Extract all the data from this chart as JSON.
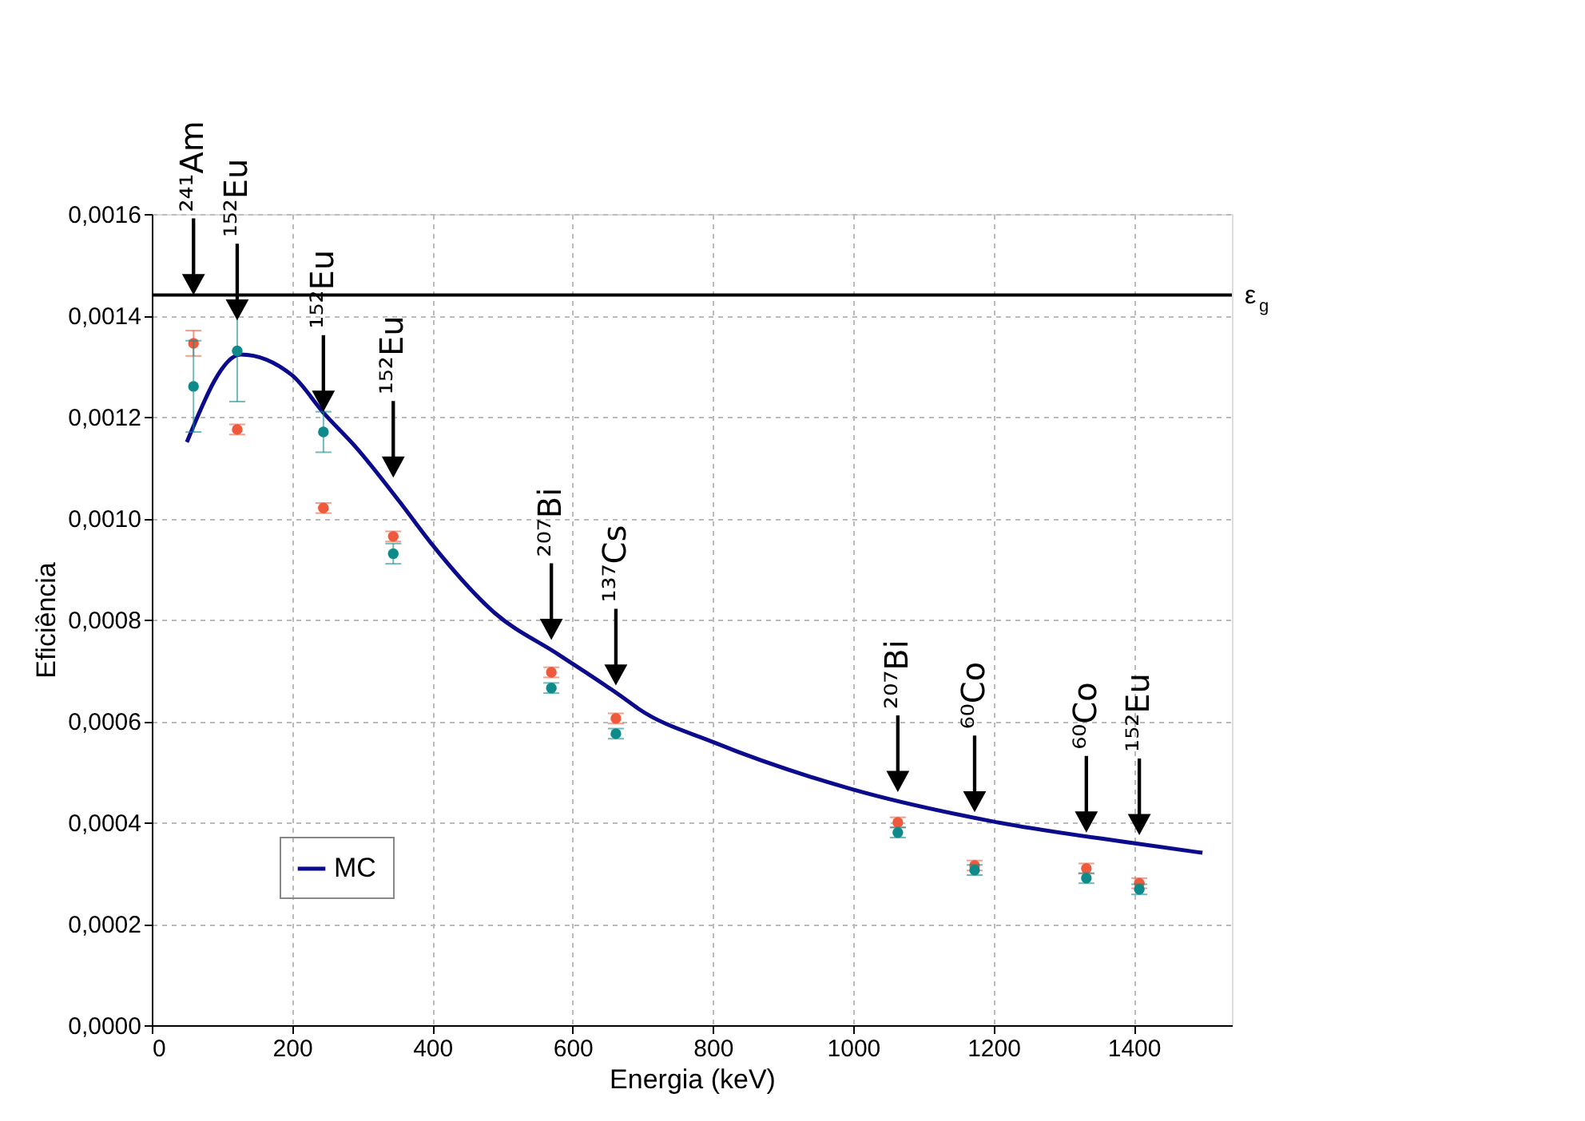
{
  "chart_data": {
    "type": "scatter",
    "xlabel": "Energia (keV)",
    "ylabel": "Eficiência",
    "xlim": [
      0,
      1540
    ],
    "xticks": [
      0,
      200,
      400,
      600,
      800,
      1000,
      1200,
      1400
    ],
    "ylim": [
      0,
      0.0016
    ],
    "yticks": [
      {
        "value": 0,
        "label": "0,0000"
      },
      {
        "value": 0.0002,
        "label": "0,0002"
      },
      {
        "value": 0.0004,
        "label": "0,0004"
      },
      {
        "value": 0.0006,
        "label": "0,0006"
      },
      {
        "value": 0.0008,
        "label": "0,0008"
      },
      {
        "value": 0.001,
        "label": "0,0010"
      },
      {
        "value": 0.0012,
        "label": "0,0012"
      },
      {
        "value": 0.0014,
        "label": "0,0014"
      },
      {
        "value": 0.0016,
        "label": "0,0016"
      }
    ],
    "grid": true,
    "legend": "bottom left",
    "marker": "circle",
    "series": [
      {
        "color": "#0f8a8a",
        "x": [
          59.5,
          121.8,
          244.7,
          344.3,
          569.7,
          661.7,
          1063.7,
          1173.2,
          1332.5,
          1408
        ],
        "values": [
          0.00126,
          0.00133,
          0.00117,
          0.00093,
          0.000665,
          0.000575,
          0.00038,
          0.000306,
          0.00029,
          0.000268
        ],
        "errors": [
          9e-05,
          0.0001,
          4e-05,
          2e-05,
          1e-05,
          1e-05,
          1e-05,
          1e-05,
          1e-05,
          1e-05
        ]
      },
      {
        "color": "#f05a3c",
        "x": [
          59.5,
          121.8,
          244.7,
          344.3,
          569.7,
          661.7,
          1063.7,
          1173.2,
          1332.5,
          1408
        ],
        "values": [
          0.001345,
          0.001175,
          0.00102,
          0.000964,
          0.000696,
          0.000605,
          0.0004,
          0.000315,
          0.000309,
          0.00028
        ],
        "errors": [
          2.5e-05,
          1e-05,
          1e-05,
          1e-05,
          1e-05,
          1e-05,
          1e-05,
          1e-05,
          1e-05,
          1e-05
        ]
      },
      {
        "type": "line",
        "name": "MC",
        "color": "#0b0b8b",
        "marker": "none",
        "line_style": "solid",
        "x": [
          50,
          127,
          200,
          246,
          291,
          353,
          398,
          489,
          580,
          672,
          694,
          801,
          997,
          1195,
          1400,
          1498
        ],
        "values": [
          0.00115,
          0.001323,
          0.001282,
          0.001206,
          0.00114,
          0.001033,
          0.000951,
          0.000813,
          0.000731,
          0.000646,
          0.000624,
          0.000558,
          0.000466,
          0.000403,
          0.000359,
          0.00034
        ]
      }
    ],
    "ref_lines": [
      {
        "axis": "y",
        "value": 0.00144,
        "label": "ε$_{g}$",
        "color": "#000000"
      }
    ],
    "annotations": [
      {
        "text": "²⁴¹Am",
        "x": 59.5,
        "y": 0.00144
      },
      {
        "text": "¹⁵²Eu",
        "x": 121.8,
        "y": 0.00139
      },
      {
        "text": "¹⁵²Eu",
        "x": 244.7,
        "y": 0.00121
      },
      {
        "text": "¹⁵²Eu",
        "x": 344.3,
        "y": 0.00108
      },
      {
        "text": "²⁰⁷Bi",
        "x": 569.7,
        "y": 0.00076
      },
      {
        "text": "¹³⁷Cs",
        "x": 661.7,
        "y": 0.00067
      },
      {
        "text": "²⁰⁷Bi",
        "x": 1063.7,
        "y": 0.00046
      },
      {
        "text": "⁶⁰Co",
        "x": 1173.2,
        "y": 0.00042
      },
      {
        "text": "⁶⁰Co",
        "x": 1332.5,
        "y": 0.00038
      },
      {
        "text": "¹⁵²Eu",
        "x": 1408,
        "y": 0.000375
      }
    ]
  }
}
